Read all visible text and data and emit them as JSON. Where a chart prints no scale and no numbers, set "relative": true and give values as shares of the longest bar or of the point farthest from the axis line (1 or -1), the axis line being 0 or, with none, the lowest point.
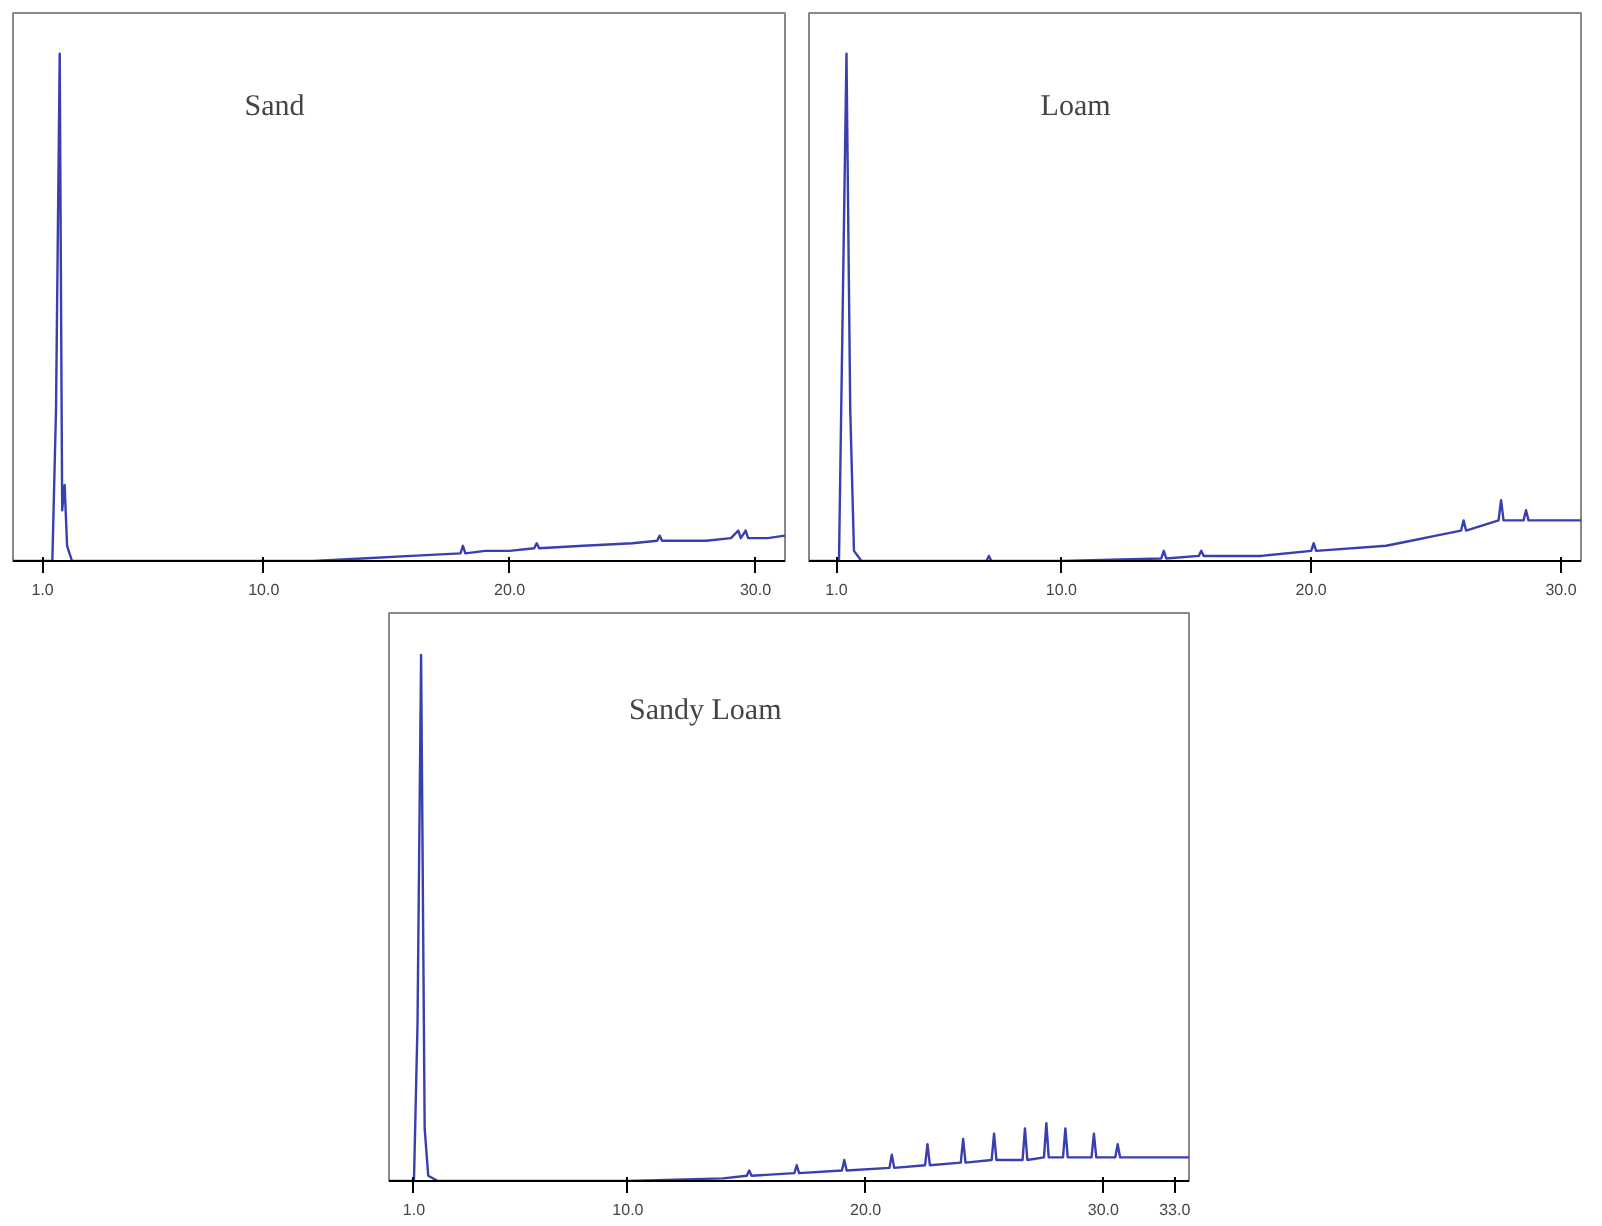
{
  "chart_data": [
    {
      "type": "line",
      "title": "Sand",
      "relative": true,
      "tick_labels": "x",
      "xlim": [
        -0.2,
        31.2
      ],
      "xticks": [
        {
          "value": 1.0,
          "label": "1.0"
        },
        {
          "value": 10.0,
          "label": "10.0"
        },
        {
          "value": 20.0,
          "label": "20.0"
        },
        {
          "value": 30.0,
          "label": "30.0"
        }
      ],
      "x": [
        -0.2,
        1.4,
        1.55,
        1.7,
        1.8,
        1.9,
        2.0,
        2.2,
        4,
        7,
        10,
        12,
        14,
        16,
        18,
        18.1,
        18.2,
        19,
        20,
        21,
        21.1,
        21.2,
        23,
        25,
        26,
        26.1,
        26.2,
        28,
        29,
        29.3,
        29.4,
        29.6,
        29.7,
        30.5,
        31.2
      ],
      "series": [
        {
          "color": "#3a3fb0",
          "values": [
            0.0,
            0.0,
            0.3,
            1.0,
            0.1,
            0.15,
            0.03,
            0.0,
            0.0,
            0.0,
            0.0,
            0.0,
            0.005,
            0.01,
            0.015,
            0.03,
            0.015,
            0.02,
            0.02,
            0.025,
            0.035,
            0.025,
            0.03,
            0.035,
            0.04,
            0.05,
            0.04,
            0.04,
            0.045,
            0.06,
            0.045,
            0.06,
            0.045,
            0.045,
            0.05
          ]
        }
      ]
    },
    {
      "type": "line",
      "title": "Loam",
      "relative": true,
      "tick_labels": "x",
      "xlim": [
        -0.1,
        30.8
      ],
      "xticks": [
        {
          "value": 1.0,
          "label": "1.0"
        },
        {
          "value": 10.0,
          "label": "10.0"
        },
        {
          "value": 20.0,
          "label": "20.0"
        },
        {
          "value": 30.0,
          "label": "30.0"
        }
      ],
      "x": [
        -0.1,
        1.1,
        1.25,
        1.4,
        1.55,
        1.7,
        2.0,
        4,
        7,
        7.1,
        7.2,
        10,
        14,
        14.1,
        14.2,
        15.5,
        15.6,
        15.7,
        18,
        20,
        20.1,
        20.2,
        23,
        24,
        25,
        26,
        26.1,
        26.2,
        27.5,
        27.6,
        27.7,
        28.5,
        28.6,
        28.7,
        29.5,
        30.8
      ],
      "series": [
        {
          "color": "#3a3fb0",
          "values": [
            0.0,
            0.0,
            0.5,
            1.0,
            0.3,
            0.02,
            0.0,
            0.0,
            0.0,
            0.01,
            0.0,
            0.0,
            0.005,
            0.02,
            0.005,
            0.01,
            0.02,
            0.01,
            0.01,
            0.02,
            0.035,
            0.02,
            0.03,
            0.04,
            0.05,
            0.06,
            0.08,
            0.06,
            0.08,
            0.12,
            0.08,
            0.08,
            0.1,
            0.08,
            0.08,
            0.08
          ]
        }
      ]
    },
    {
      "type": "line",
      "title": "Sandy Loam",
      "relative": true,
      "tick_labels": "x",
      "xlim": [
        -0.05,
        33.6
      ],
      "xticks": [
        {
          "value": 1.0,
          "label": "1.0"
        },
        {
          "value": 10.0,
          "label": "10.0"
        },
        {
          "value": 20.0,
          "label": "20.0"
        },
        {
          "value": 30.0,
          "label": "30.0"
        },
        {
          "value": 33.0,
          "label": "33.0"
        }
      ],
      "x": [
        -0.05,
        1.0,
        1.15,
        1.3,
        1.45,
        1.6,
        2.0,
        5,
        10,
        14,
        15,
        15.1,
        15.2,
        17,
        17.1,
        17.2,
        19,
        19.1,
        19.2,
        21,
        21.1,
        21.2,
        22.5,
        22.6,
        22.7,
        24,
        24.1,
        24.2,
        25.3,
        25.4,
        25.5,
        26.6,
        26.7,
        26.8,
        27.5,
        27.6,
        27.7,
        28.3,
        28.4,
        28.5,
        29.5,
        29.6,
        29.7,
        30.5,
        30.6,
        30.7,
        31.5,
        33.6
      ],
      "series": [
        {
          "color": "#3a3fb0",
          "values": [
            0.0,
            0.0,
            0.3,
            1.0,
            0.1,
            0.01,
            0.0,
            0.0,
            0.0,
            0.005,
            0.01,
            0.02,
            0.01,
            0.015,
            0.03,
            0.015,
            0.02,
            0.04,
            0.02,
            0.025,
            0.05,
            0.025,
            0.03,
            0.07,
            0.03,
            0.035,
            0.08,
            0.035,
            0.04,
            0.09,
            0.04,
            0.04,
            0.1,
            0.04,
            0.045,
            0.11,
            0.045,
            0.045,
            0.1,
            0.045,
            0.045,
            0.09,
            0.045,
            0.045,
            0.07,
            0.045,
            0.045,
            0.045
          ]
        }
      ]
    }
  ]
}
